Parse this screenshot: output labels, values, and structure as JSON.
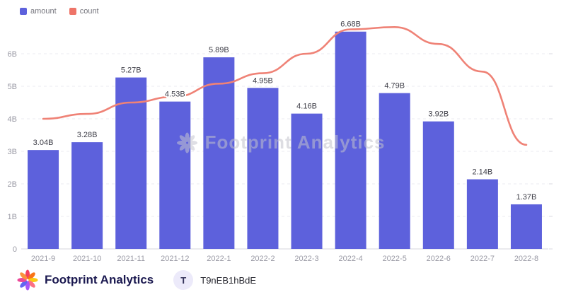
{
  "legend": {
    "items": [
      {
        "label": "amount",
        "color": "#5d61dc"
      },
      {
        "label": "count",
        "color": "#ee7468"
      }
    ]
  },
  "watermark": {
    "text": "Footprint Analytics"
  },
  "footer": {
    "brand": "Footprint Analytics",
    "avatar_letter": "T",
    "account": "T9nEB1hBdE"
  },
  "chart_data": {
    "type": "bar+line",
    "title": "",
    "categories": [
      "2021-9",
      "2021-10",
      "2021-11",
      "2021-12",
      "2022-1",
      "2022-2",
      "2022-3",
      "2022-4",
      "2022-5",
      "2022-6",
      "2022-7",
      "2022-8"
    ],
    "series": [
      {
        "name": "amount",
        "type": "bar",
        "color": "#5d61dc",
        "unit": "B",
        "values": [
          3.04,
          3.28,
          5.27,
          4.53,
          5.89,
          4.95,
          4.16,
          6.68,
          4.79,
          3.92,
          2.14,
          1.37
        ],
        "labels": [
          "3.04B",
          "3.28B",
          "5.27B",
          "4.53B",
          "5.89B",
          "4.95B",
          "4.16B",
          "6.68B",
          "4.79B",
          "3.92B",
          "2.14B",
          "1.37B"
        ]
      },
      {
        "name": "count",
        "type": "line",
        "color": "#ef8276",
        "axis": "right-unlabeled",
        "values": [
          4.0,
          4.15,
          4.5,
          4.68,
          5.08,
          5.4,
          6.0,
          6.75,
          6.82,
          6.3,
          5.45,
          3.2
        ]
      }
    ],
    "xlabel": "",
    "ylabel": "",
    "yticks": [
      "0",
      "1B",
      "2B",
      "3B",
      "4B",
      "5B",
      "6B"
    ],
    "ylim": [
      0,
      7
    ],
    "grid": "horizontal-dashed",
    "legend_position": "top-left",
    "watermark": "Footprint Analytics"
  }
}
